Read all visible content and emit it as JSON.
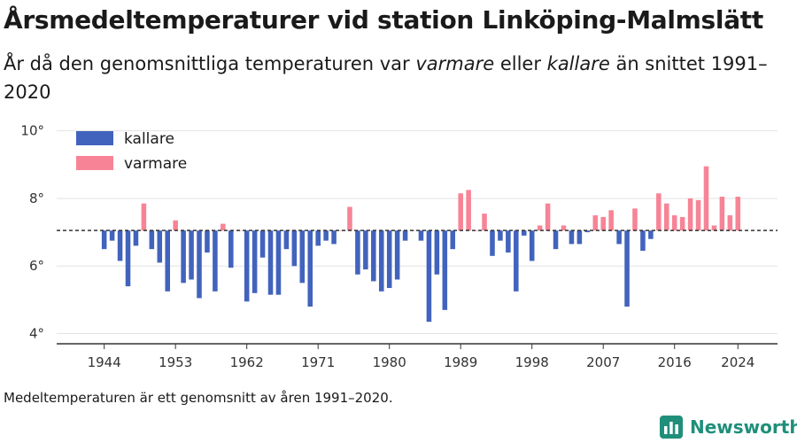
{
  "title": "Årsmedeltemperaturer vid station Linköping-Malmslätt",
  "subtitle": {
    "part1": "År då den genomsnittliga temperaturen var ",
    "warmer": "varmare",
    "part2": " eller ",
    "colder": "kallare",
    "part3": " än snittet 1991–2020"
  },
  "footnote": "Medeltemperaturen är ett genomsnitt av åren 1991–2020.",
  "logo": {
    "name": "Newsworthy",
    "icon": "newsworthy-logo-icon"
  },
  "colors": {
    "colder": "#4263bd",
    "warmer": "#f78496",
    "grid": "#e3e3e3",
    "baseline": "#333333",
    "axis": "#333333"
  },
  "chart_data": {
    "type": "bar",
    "title": "Årsmedeltemperaturer vid station Linköping-Malmslätt",
    "xlabel": "",
    "ylabel": "",
    "ylim": [
      3.7,
      10.2
    ],
    "xlim": [
      1938,
      2029
    ],
    "baseline": 7.05,
    "grid": true,
    "legend_position": "top-left",
    "y_ticks": [
      4,
      6,
      8,
      10
    ],
    "y_tick_labels": [
      "4°",
      "6°",
      "8°",
      "10°"
    ],
    "x_ticks": [
      1944,
      1953,
      1962,
      1971,
      1980,
      1989,
      1998,
      2007,
      2016,
      2024
    ],
    "x_tick_labels": [
      "1944",
      "1953",
      "1962",
      "1971",
      "1980",
      "1989",
      "1998",
      "2007",
      "2016",
      "2024"
    ],
    "legend": [
      {
        "key": "colder",
        "label": "kallare"
      },
      {
        "key": "warmer",
        "label": "varmare"
      }
    ],
    "x": [
      1944,
      1945,
      1946,
      1947,
      1948,
      1949,
      1950,
      1951,
      1952,
      1953,
      1954,
      1955,
      1956,
      1957,
      1958,
      1959,
      1960,
      1961,
      1962,
      1963,
      1964,
      1965,
      1966,
      1967,
      1968,
      1969,
      1970,
      1971,
      1972,
      1973,
      1974,
      1975,
      1976,
      1977,
      1978,
      1979,
      1980,
      1981,
      1982,
      1983,
      1984,
      1985,
      1986,
      1987,
      1988,
      1989,
      1990,
      1991,
      1992,
      1993,
      1994,
      1995,
      1996,
      1997,
      1998,
      1999,
      2000,
      2001,
      2002,
      2003,
      2004,
      2005,
      2006,
      2007,
      2008,
      2009,
      2010,
      2011,
      2012,
      2013,
      2014,
      2015,
      2016,
      2017,
      2018,
      2019,
      2020,
      2021,
      2022,
      2023,
      2024
    ],
    "values": [
      6.5,
      6.75,
      6.15,
      5.4,
      6.6,
      7.85,
      6.5,
      6.1,
      5.25,
      7.35,
      5.5,
      5.6,
      5.05,
      6.4,
      5.25,
      7.25,
      5.95,
      7.05,
      4.95,
      5.2,
      6.25,
      5.15,
      5.15,
      6.5,
      6.0,
      5.5,
      4.8,
      6.6,
      6.75,
      6.65,
      7.05,
      7.75,
      5.75,
      5.9,
      5.55,
      5.25,
      5.35,
      5.6,
      6.75,
      7.05,
      6.75,
      4.35,
      5.75,
      4.7,
      6.5,
      8.15,
      8.25,
      7.05,
      7.55,
      6.3,
      6.75,
      6.4,
      5.25,
      6.9,
      6.15,
      7.2,
      7.85,
      6.5,
      7.2,
      6.65,
      6.65,
      7.0,
      7.5,
      7.45,
      7.65,
      6.65,
      4.8,
      7.7,
      6.45,
      6.8,
      8.15,
      7.85,
      7.5,
      7.45,
      8.0,
      7.95,
      8.95,
      7.2,
      8.05,
      7.5,
      8.05
    ]
  }
}
